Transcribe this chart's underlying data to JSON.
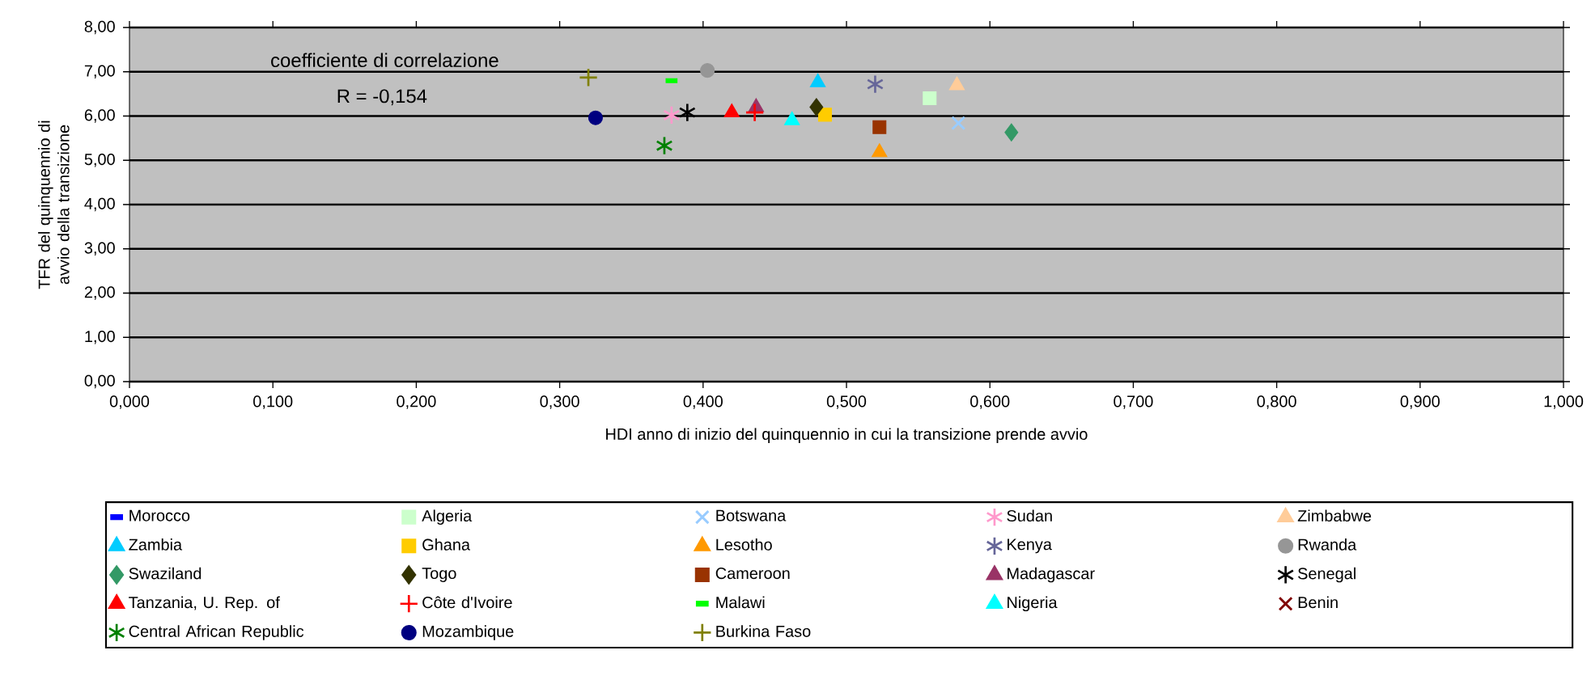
{
  "chart_data": {
    "type": "scatter",
    "xlabel": "HDI anno di inizio del quinquennio in cui la transizione prende avvio",
    "ylabel": "TFR del quinquennio di avvio della transizione",
    "annotations": [
      "coefficiente di correlazione",
      "R = -0,154"
    ],
    "xlim": [
      0,
      1
    ],
    "ylim": [
      0,
      8
    ],
    "xticks": [
      {
        "value": 0,
        "label": "0,000"
      },
      {
        "value": 0.1,
        "label": "0,100"
      },
      {
        "value": 0.2,
        "label": "0,200"
      },
      {
        "value": 0.3,
        "label": "0,300"
      },
      {
        "value": 0.4,
        "label": "0,400"
      },
      {
        "value": 0.5,
        "label": "0,500"
      },
      {
        "value": 0.6,
        "label": "0,600"
      },
      {
        "value": 0.7,
        "label": "0,700"
      },
      {
        "value": 0.8,
        "label": "0,800"
      },
      {
        "value": 0.9,
        "label": "0,900"
      },
      {
        "value": 1,
        "label": "1,000"
      }
    ],
    "yticks": [
      {
        "value": 0,
        "label": "0,00"
      },
      {
        "value": 1,
        "label": "1,00"
      },
      {
        "value": 2,
        "label": "2,00"
      },
      {
        "value": 3,
        "label": "3,00"
      },
      {
        "value": 4,
        "label": "4,00"
      },
      {
        "value": 5,
        "label": "5,00"
      },
      {
        "value": 6,
        "label": "6,00"
      },
      {
        "value": 7,
        "label": "7,00"
      },
      {
        "value": 8,
        "label": "8,00"
      }
    ],
    "grid": "y",
    "legend": "bottom",
    "series": [
      {
        "name": "Morocco",
        "color": "#0000ff",
        "marker": "square",
        "x": [
          null
        ],
        "values": [
          null
        ]
      },
      {
        "name": "Algeria",
        "color": "#ccffcc",
        "marker": "square",
        "x": [
          0.558
        ],
        "values": [
          6.4
        ]
      },
      {
        "name": "Botswana",
        "color": "#99ccff",
        "marker": "cross",
        "x": [
          0.578
        ],
        "values": [
          5.84
        ]
      },
      {
        "name": "Sudan",
        "color": "#ff99cc",
        "marker": "cross",
        "x": [
          0.378
        ],
        "values": [
          6.02
        ]
      },
      {
        "name": "Zimbabwe",
        "color": "#ffcc99",
        "marker": "triangle",
        "x": [
          0.577
        ],
        "values": [
          6.69
        ]
      },
      {
        "name": "Zambia",
        "color": "#00ccff",
        "marker": "triangle",
        "x": [
          0.48
        ],
        "values": [
          6.76
        ]
      },
      {
        "name": "Ghana",
        "color": "#ffcc00",
        "marker": "square",
        "x": [
          0.485
        ],
        "values": [
          6.03
        ]
      },
      {
        "name": "Lesotho",
        "color": "#ff9900",
        "marker": "triangle",
        "x": [
          0.523
        ],
        "values": [
          5.18
        ]
      },
      {
        "name": "Kenya",
        "color": "#666699",
        "marker": "cross",
        "x": [
          0.52
        ],
        "values": [
          6.72
        ]
      },
      {
        "name": "Rwanda",
        "color": "#969696",
        "marker": "circle",
        "x": [
          0.403
        ],
        "values": [
          7.03
        ]
      },
      {
        "name": "Swaziland",
        "color": "#339966",
        "marker": "diamond",
        "x": [
          0.615
        ],
        "values": [
          5.63
        ]
      },
      {
        "name": "Togo",
        "color": "#333300",
        "marker": "diamond",
        "x": [
          0.479
        ],
        "values": [
          6.2
        ]
      },
      {
        "name": "Cameroon",
        "color": "#993300",
        "marker": "square",
        "x": [
          0.523
        ],
        "values": [
          5.75
        ]
      },
      {
        "name": "Madagascar",
        "color": "#993366",
        "marker": "triangle",
        "x": [
          0.437
        ],
        "values": [
          6.2
        ]
      },
      {
        "name": "Senegal",
        "color": "#000000",
        "marker": "cross",
        "x": [
          0.389
        ],
        "values": [
          6.08
        ]
      },
      {
        "name": "Tanzania, U. Rep. of",
        "color": "#ff0000",
        "marker": "triangle",
        "x": [
          0.42
        ],
        "values": [
          6.08
        ]
      },
      {
        "name": "Côte d'Ivoire",
        "color": "#ff0000",
        "marker": "plus",
        "x": [
          0.436
        ],
        "values": [
          6.08
        ]
      },
      {
        "name": "Malawi",
        "color": "#00ff00",
        "marker": "square",
        "x": [
          0.378
        ],
        "values": [
          6.8
        ]
      },
      {
        "name": "Nigeria",
        "color": "#00ffff",
        "marker": "triangle",
        "x": [
          0.462
        ],
        "values": [
          5.9
        ]
      },
      {
        "name": "Benin",
        "color": "#800000",
        "marker": "cross",
        "x": [
          null
        ],
        "values": [
          null
        ]
      },
      {
        "name": "Central African Republic",
        "color": "#008000",
        "marker": "cross",
        "x": [
          0.373
        ],
        "values": [
          5.33
        ]
      },
      {
        "name": "Mozambique",
        "color": "#000080",
        "marker": "circle",
        "x": [
          0.325
        ],
        "values": [
          5.96
        ]
      },
      {
        "name": "Burkina Faso",
        "color": "#808000",
        "marker": "plus",
        "x": [
          0.32
        ],
        "values": [
          6.87
        ]
      }
    ]
  }
}
